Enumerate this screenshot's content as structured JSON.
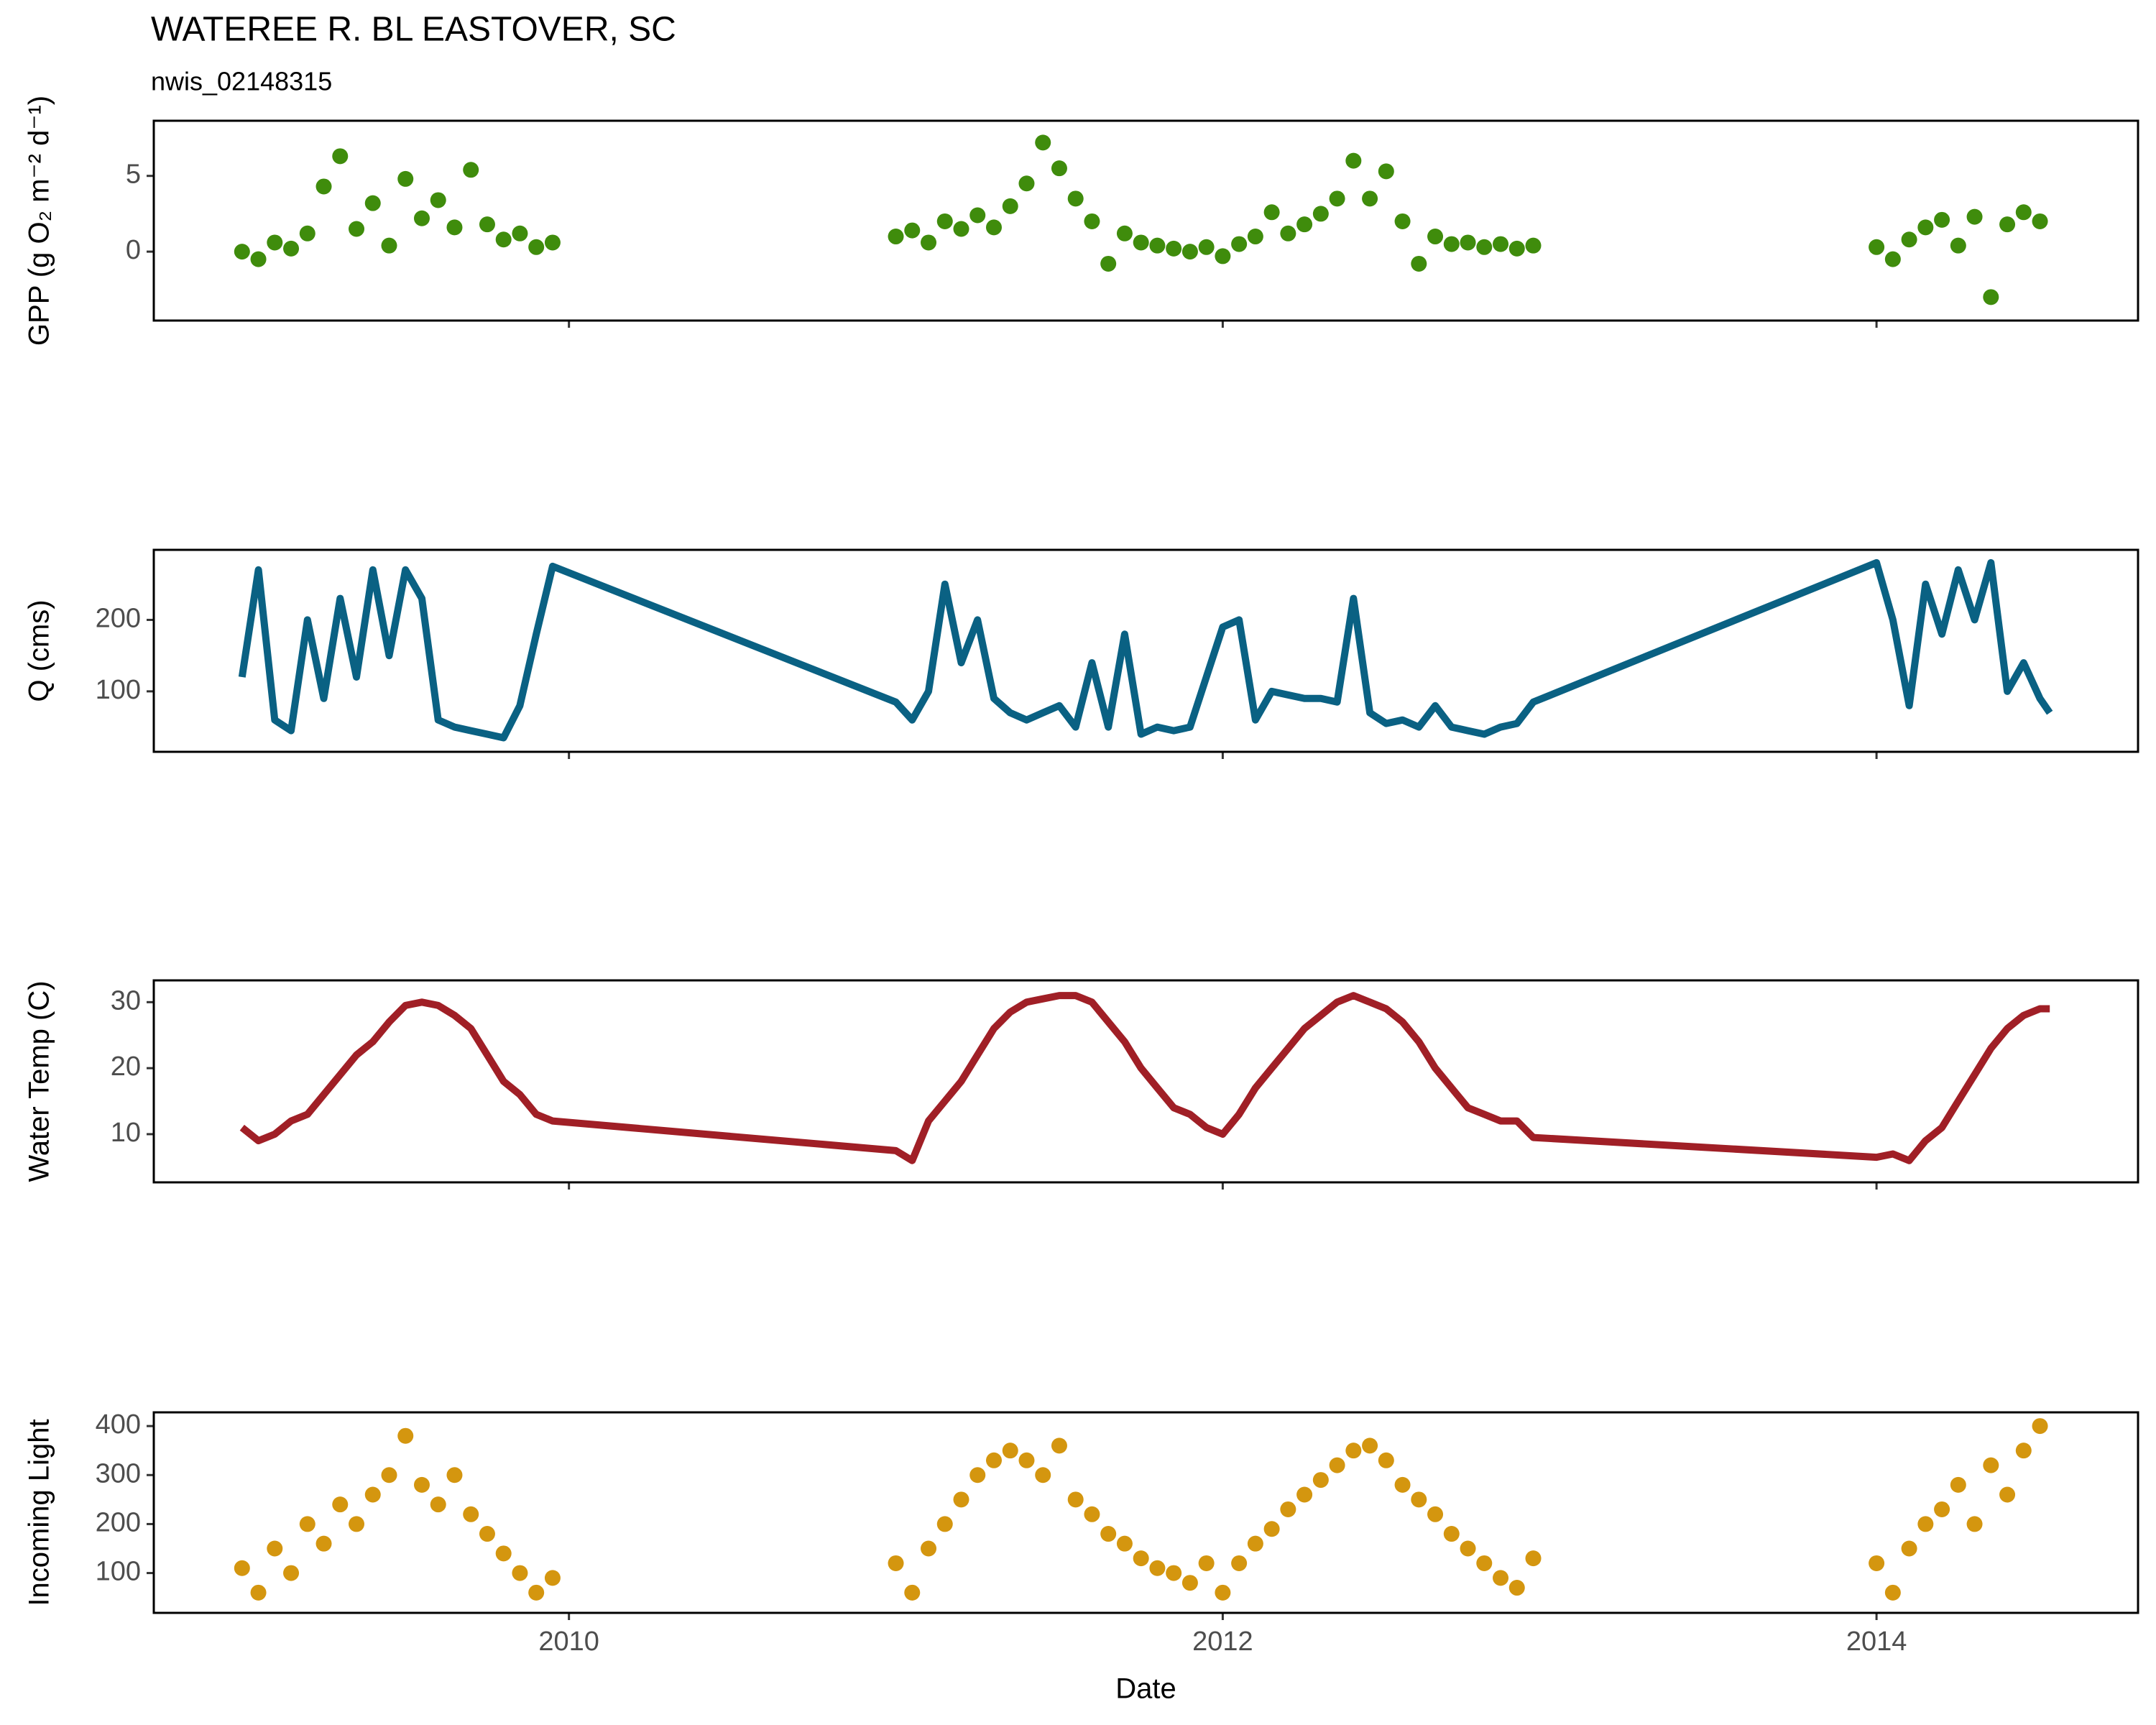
{
  "title": "WATEREE R. BL EASTOVER, SC",
  "subtitle": "nwis_02148315",
  "chart_data": [
    {
      "type": "scatter",
      "ylabel": "GPP (g  O₂ m⁻² d⁻¹)",
      "color": "#3f8c0c",
      "x": [
        2009.0,
        2009.05,
        2009.1,
        2009.15,
        2009.2,
        2009.25,
        2009.3,
        2009.35,
        2009.4,
        2009.45,
        2009.5,
        2009.55,
        2009.6,
        2009.65,
        2009.7,
        2009.75,
        2009.8,
        2009.85,
        2009.9,
        2009.95,
        2011.0,
        2011.05,
        2011.1,
        2011.15,
        2011.2,
        2011.25,
        2011.3,
        2011.35,
        2011.4,
        2011.45,
        2011.5,
        2011.55,
        2011.6,
        2011.65,
        2011.7,
        2011.75,
        2011.8,
        2011.85,
        2011.9,
        2011.95,
        2012.0,
        2012.05,
        2012.1,
        2012.15,
        2012.2,
        2012.25,
        2012.3,
        2012.35,
        2012.4,
        2012.45,
        2012.5,
        2012.55,
        2012.6,
        2012.65,
        2012.7,
        2012.75,
        2012.8,
        2012.85,
        2012.9,
        2012.95,
        2014.0,
        2014.05,
        2014.1,
        2014.15,
        2014.2,
        2014.25,
        2014.3,
        2014.35,
        2014.4,
        2014.45,
        2014.5
      ],
      "values": [
        0,
        -0.5,
        0.6,
        0.2,
        1.2,
        4.3,
        6.3,
        1.5,
        3.2,
        0.4,
        4.8,
        2.2,
        3.4,
        1.6,
        5.4,
        1.8,
        0.8,
        1.2,
        0.3,
        0.6,
        1.0,
        1.4,
        0.6,
        2.0,
        1.5,
        2.4,
        1.6,
        3.0,
        4.5,
        7.2,
        5.5,
        3.5,
        2.0,
        -0.8,
        1.2,
        0.6,
        0.4,
        0.2,
        0.0,
        0.3,
        -0.3,
        0.5,
        1.0,
        2.6,
        1.2,
        1.8,
        2.5,
        3.5,
        6.0,
        3.5,
        5.3,
        2.0,
        -0.8,
        1.0,
        0.5,
        0.6,
        0.3,
        0.5,
        0.2,
        0.4,
        0.3,
        -0.5,
        0.8,
        1.6,
        2.1,
        0.4,
        2.3,
        -3.0,
        1.8,
        2.6,
        2.0
      ],
      "xlim": [
        2008.73,
        2014.8
      ],
      "ylim": [
        -4.55,
        8.64
      ],
      "yticks": [
        0,
        5
      ]
    },
    {
      "type": "line",
      "ylabel": "Q (cms)",
      "color": "#0a6183",
      "x": [
        2009.0,
        2009.05,
        2009.1,
        2009.15,
        2009.2,
        2009.25,
        2009.3,
        2009.35,
        2009.4,
        2009.45,
        2009.5,
        2009.55,
        2009.6,
        2009.65,
        2009.7,
        2009.75,
        2009.8,
        2009.85,
        2009.9,
        2009.95,
        2011.0,
        2011.05,
        2011.1,
        2011.15,
        2011.2,
        2011.25,
        2011.3,
        2011.35,
        2011.4,
        2011.45,
        2011.5,
        2011.55,
        2011.6,
        2011.65,
        2011.7,
        2011.75,
        2011.8,
        2011.85,
        2011.9,
        2011.95,
        2012.0,
        2012.05,
        2012.1,
        2012.15,
        2012.2,
        2012.25,
        2012.3,
        2012.35,
        2012.4,
        2012.45,
        2012.5,
        2012.55,
        2012.6,
        2012.65,
        2012.7,
        2012.75,
        2012.8,
        2012.85,
        2012.9,
        2012.95,
        2014.0,
        2014.05,
        2014.1,
        2014.15,
        2014.2,
        2014.25,
        2014.3,
        2014.35,
        2014.4,
        2014.45,
        2014.5,
        2014.53
      ],
      "values": [
        120,
        270,
        60,
        45,
        200,
        90,
        230,
        120,
        270,
        150,
        270,
        230,
        60,
        50,
        45,
        40,
        35,
        80,
        180,
        275,
        85,
        60,
        100,
        250,
        140,
        200,
        90,
        70,
        60,
        70,
        80,
        50,
        140,
        50,
        180,
        40,
        50,
        45,
        50,
        120,
        190,
        200,
        60,
        100,
        95,
        90,
        90,
        85,
        230,
        70,
        55,
        60,
        50,
        80,
        50,
        45,
        40,
        50,
        55,
        85,
        280,
        200,
        80,
        250,
        180,
        270,
        200,
        280,
        100,
        140,
        90,
        70
      ],
      "xlim": [
        2008.73,
        2014.8
      ],
      "ylim": [
        15.4,
        298
      ],
      "yticks": [
        100,
        200
      ]
    },
    {
      "type": "line",
      "ylabel": "Water Temp (C)",
      "color": "#a01f26",
      "x": [
        2009.0,
        2009.05,
        2009.1,
        2009.15,
        2009.2,
        2009.25,
        2009.3,
        2009.35,
        2009.4,
        2009.45,
        2009.5,
        2009.55,
        2009.6,
        2009.65,
        2009.7,
        2009.75,
        2009.8,
        2009.85,
        2009.9,
        2009.95,
        2011.0,
        2011.05,
        2011.1,
        2011.15,
        2011.2,
        2011.25,
        2011.3,
        2011.35,
        2011.4,
        2011.45,
        2011.5,
        2011.55,
        2011.6,
        2011.65,
        2011.7,
        2011.75,
        2011.8,
        2011.85,
        2011.9,
        2011.95,
        2012.0,
        2012.05,
        2012.1,
        2012.15,
        2012.2,
        2012.25,
        2012.3,
        2012.35,
        2012.4,
        2012.45,
        2012.5,
        2012.55,
        2012.6,
        2012.65,
        2012.7,
        2012.75,
        2012.8,
        2012.85,
        2012.9,
        2012.95,
        2014.0,
        2014.05,
        2014.1,
        2014.15,
        2014.2,
        2014.25,
        2014.3,
        2014.35,
        2014.4,
        2014.45,
        2014.5,
        2014.53
      ],
      "values": [
        11,
        9,
        10,
        12,
        13,
        16,
        19,
        22,
        24,
        27,
        29.5,
        30,
        29.5,
        28,
        26,
        22,
        18,
        16,
        13,
        12,
        7.5,
        6,
        12,
        15,
        18,
        22,
        26,
        28.5,
        30,
        30.5,
        31,
        31,
        30,
        27,
        24,
        20,
        17,
        14,
        13,
        11,
        10,
        13,
        17,
        20,
        23,
        26,
        28,
        30,
        31,
        30,
        29,
        27,
        24,
        20,
        17,
        14,
        13,
        12,
        12,
        9.5,
        6.5,
        7,
        6,
        9,
        11,
        15,
        19,
        23,
        26,
        28,
        29,
        29
      ],
      "xlim": [
        2008.73,
        2014.8
      ],
      "ylim": [
        2.7,
        33.3
      ],
      "yticks": [
        10,
        20,
        30
      ]
    },
    {
      "type": "scatter",
      "ylabel": "Incoming Light",
      "xlabel": "Date",
      "color": "#d4960f",
      "x": [
        2009.0,
        2009.05,
        2009.1,
        2009.15,
        2009.2,
        2009.25,
        2009.3,
        2009.35,
        2009.4,
        2009.45,
        2009.5,
        2009.55,
        2009.6,
        2009.65,
        2009.7,
        2009.75,
        2009.8,
        2009.85,
        2009.9,
        2009.95,
        2011.0,
        2011.05,
        2011.1,
        2011.15,
        2011.2,
        2011.25,
        2011.3,
        2011.35,
        2011.4,
        2011.45,
        2011.5,
        2011.55,
        2011.6,
        2011.65,
        2011.7,
        2011.75,
        2011.8,
        2011.85,
        2011.9,
        2011.95,
        2012.0,
        2012.05,
        2012.1,
        2012.15,
        2012.2,
        2012.25,
        2012.3,
        2012.35,
        2012.4,
        2012.45,
        2012.5,
        2012.55,
        2012.6,
        2012.65,
        2012.7,
        2012.75,
        2012.8,
        2012.85,
        2012.9,
        2012.95,
        2014.0,
        2014.05,
        2014.1,
        2014.15,
        2014.2,
        2014.25,
        2014.3,
        2014.35,
        2014.4,
        2014.45,
        2014.5
      ],
      "values": [
        110,
        60,
        150,
        100,
        200,
        160,
        240,
        200,
        260,
        300,
        380,
        280,
        240,
        300,
        220,
        180,
        140,
        100,
        60,
        90,
        120,
        60,
        150,
        200,
        250,
        300,
        330,
        350,
        330,
        300,
        360,
        250,
        220,
        180,
        160,
        130,
        110,
        100,
        80,
        120,
        60,
        120,
        160,
        190,
        230,
        260,
        290,
        320,
        350,
        360,
        330,
        280,
        250,
        220,
        180,
        150,
        120,
        90,
        70,
        130,
        120,
        60,
        150,
        200,
        230,
        280,
        200,
        320,
        260,
        350,
        400
      ],
      "xlim": [
        2008.73,
        2014.8
      ],
      "ylim": [
        18.7,
        428
      ],
      "yticks": [
        100,
        200,
        300,
        400
      ],
      "xticks": [
        2010,
        2012,
        2014
      ]
    }
  ]
}
